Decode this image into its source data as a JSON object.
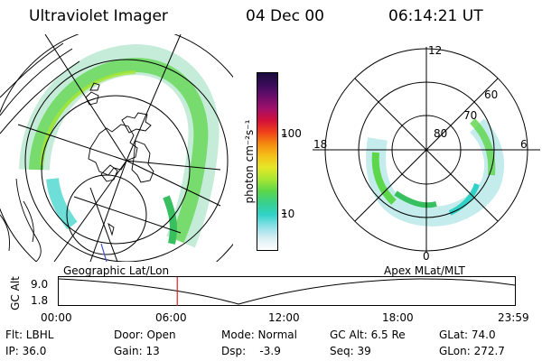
{
  "header": {
    "instrument": "Ultraviolet Imager",
    "date": "04 Dec 00",
    "time": "06:14:21 UT"
  },
  "colorbar": {
    "unit_label": "photon cm⁻²s⁻¹",
    "ticks": [
      "100",
      "10"
    ],
    "colors_top_to_bottom": [
      "#1a0a3c",
      "#3a0c5a",
      "#6a0d6a",
      "#a0106a",
      "#d2103a",
      "#f0401a",
      "#f38a10",
      "#f5c018",
      "#e6e628",
      "#a8e632",
      "#5cd64a",
      "#38d08c",
      "#30d2c8",
      "#8ee0e8",
      "#d8eef2",
      "#ffffff"
    ]
  },
  "left_panel": {
    "caption": "Geographic Lat/Lon"
  },
  "right_panel": {
    "caption": "Apex MLat/MLT",
    "mlt_labels": {
      "top": "12",
      "left": "18",
      "right": "6",
      "bottom": "0"
    },
    "lat_labels": [
      "60",
      "70",
      "80"
    ]
  },
  "timeline": {
    "ylabel": "GC Alt",
    "y_ticks": [
      "9.0",
      "1.8"
    ],
    "x_ticks": [
      "00:00",
      "06:00",
      "12:00",
      "18:00",
      "23:59"
    ],
    "current_time_fraction": 0.2599
  },
  "info": {
    "row1": {
      "flt": "Flt: LBHL",
      "door": "Door: Open",
      "mode": "Mode: Normal",
      "gcalt": "GC Alt: 6.5 Re",
      "glat": "GLat:  74.0"
    },
    "row2": {
      "ip": "IP: 36.0",
      "gain": "Gain: 13",
      "dsp": "Dsp:    -3.9",
      "seq": "Seq: 39",
      "glon": "GLon: 272.7"
    }
  }
}
